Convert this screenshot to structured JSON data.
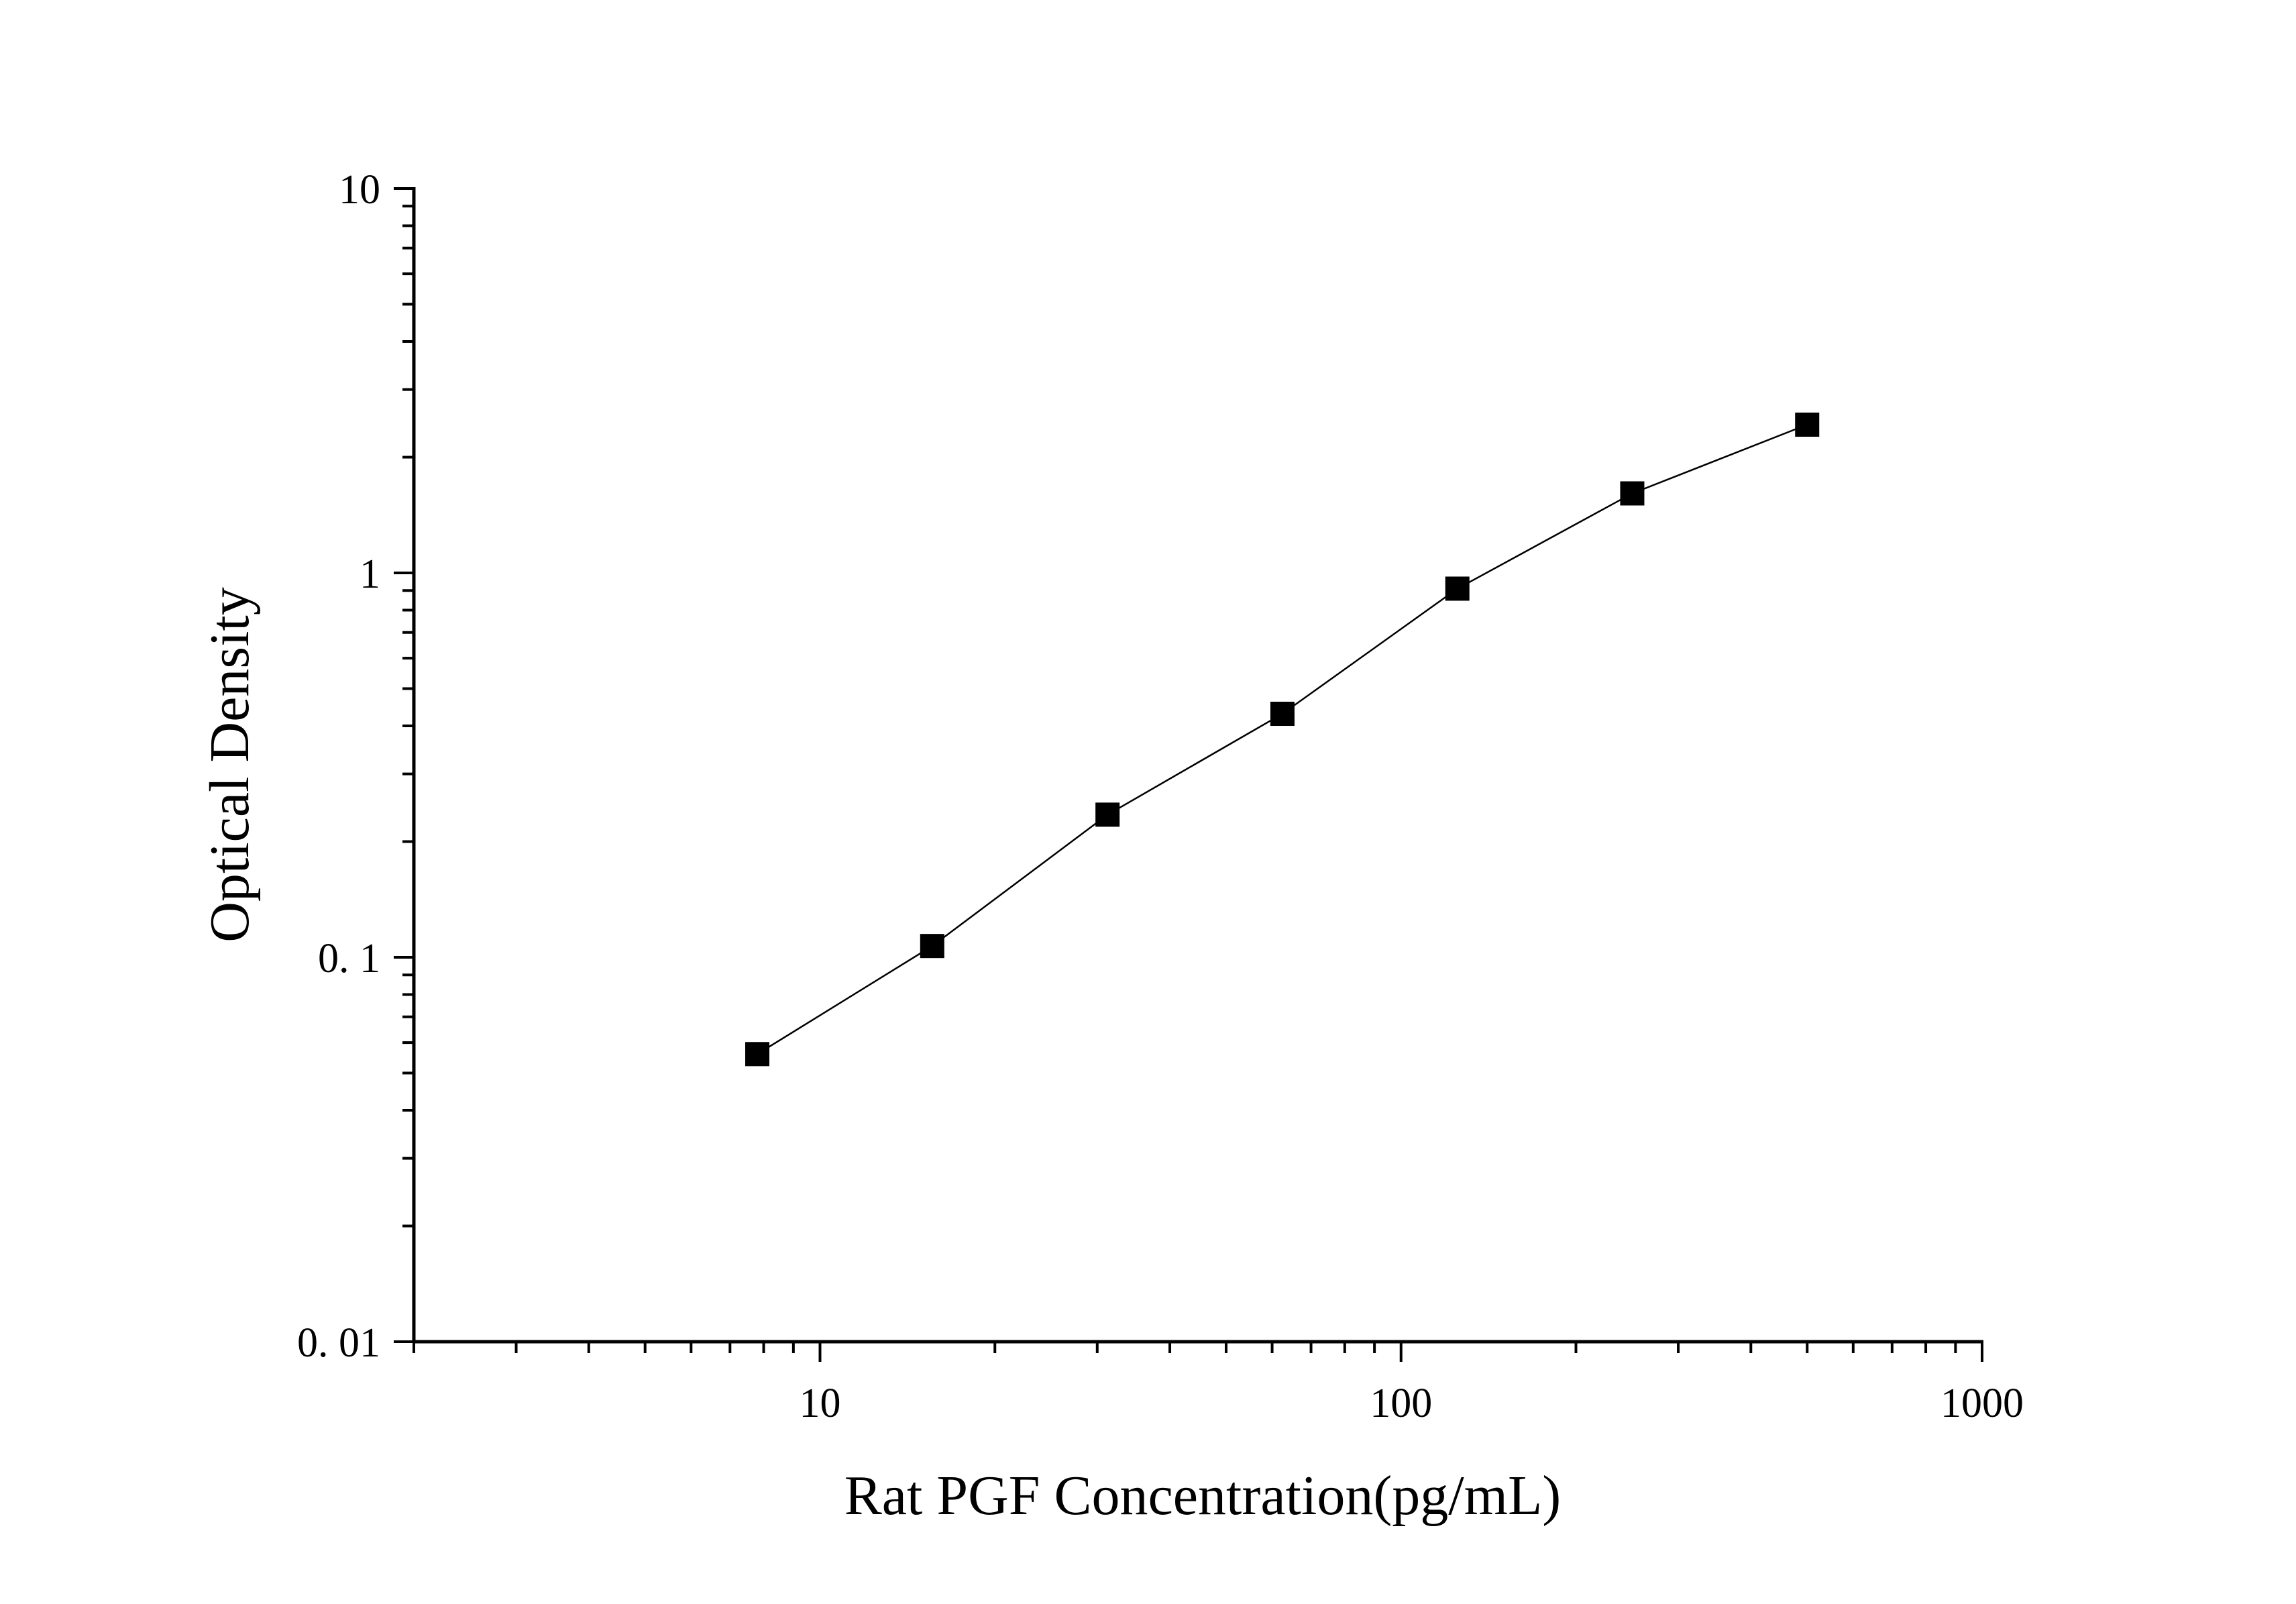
{
  "chart_data": {
    "type": "scatter",
    "xlabel": "Rat PGF Concentration(pg/mL)",
    "ylabel": "Optical Density",
    "x_scale": "log",
    "y_scale": "log",
    "xlim": [
      2,
      1000
    ],
    "ylim": [
      0.01,
      10
    ],
    "x_tick_labels": [
      {
        "value": 10,
        "label": "10"
      },
      {
        "value": 100,
        "label": "100"
      },
      {
        "value": 1000,
        "label": "1000"
      }
    ],
    "y_tick_labels": [
      {
        "value": 0.01,
        "label": "0. 01"
      },
      {
        "value": 0.1,
        "label": "0. 1"
      },
      {
        "value": 1,
        "label": "1"
      },
      {
        "value": 10,
        "label": "10"
      }
    ],
    "grid": false,
    "legend": "none",
    "colors": {
      "marker": "#000000",
      "line": "#000000",
      "axis": "#000000"
    },
    "series": [
      {
        "marker": "square",
        "connected": true,
        "points": [
          {
            "x": 7.8,
            "y": 0.056
          },
          {
            "x": 15.6,
            "y": 0.107
          },
          {
            "x": 31.25,
            "y": 0.235
          },
          {
            "x": 62.5,
            "y": 0.43
          },
          {
            "x": 125,
            "y": 0.91
          },
          {
            "x": 250,
            "y": 1.61
          },
          {
            "x": 500,
            "y": 2.43
          }
        ]
      }
    ]
  }
}
